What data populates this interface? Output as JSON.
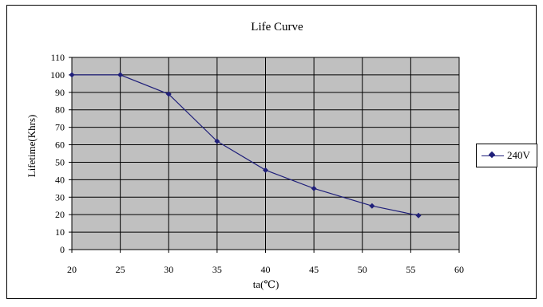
{
  "chart_data": {
    "type": "line",
    "title": "Life Curve",
    "xlabel": "ta(℃)",
    "ylabel": "Lifetime(Khrs)",
    "xlim": [
      20,
      60
    ],
    "ylim": [
      0,
      110
    ],
    "x_ticks": [
      20,
      25,
      30,
      35,
      40,
      45,
      50,
      55,
      60
    ],
    "y_ticks": [
      0,
      10,
      20,
      30,
      40,
      50,
      60,
      70,
      80,
      90,
      100,
      110
    ],
    "grid": true,
    "legend_position": "right",
    "plot_background": "#c0c0c0",
    "series": [
      {
        "name": "240V",
        "color": "#1f1f7a",
        "x": [
          20,
          25,
          30,
          35,
          40,
          45,
          51,
          55.8
        ],
        "y": [
          100,
          100,
          89,
          62,
          45.5,
          35,
          25,
          19.5
        ]
      }
    ]
  }
}
